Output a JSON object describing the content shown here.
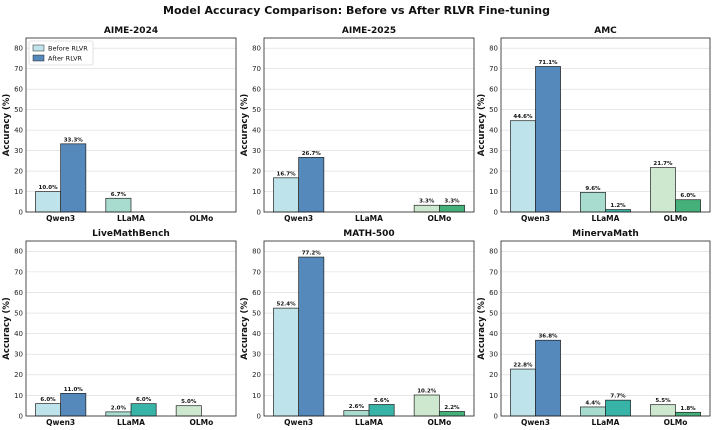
{
  "figure_title": "Model Accuracy Comparison: Before vs After RLVR Fine-tuning",
  "chart_data": [
    {
      "type": "bar",
      "title": "AIME-2024",
      "ylabel": "Accuracy (%)",
      "ylim": [
        0,
        85
      ],
      "yticks": [
        0,
        10,
        20,
        30,
        40,
        50,
        60,
        70,
        80
      ],
      "categories": [
        "Qwen3",
        "LLaMA",
        "OLMo"
      ],
      "series": [
        {
          "name": "Before RLVR",
          "values": [
            10.0,
            6.7,
            0.0
          ],
          "labels": [
            "10.0%",
            "6.7%",
            ""
          ]
        },
        {
          "name": "After RLVR",
          "values": [
            33.3,
            0.0,
            0.0
          ],
          "labels": [
            "33.3%",
            "",
            ""
          ]
        }
      ],
      "legend": {
        "position": "top-left",
        "entries": [
          "Before RLVR",
          "After RLVR"
        ]
      }
    },
    {
      "type": "bar",
      "title": "AIME-2025",
      "ylabel": "Accuracy (%)",
      "ylim": [
        0,
        85
      ],
      "yticks": [
        0,
        10,
        20,
        30,
        40,
        50,
        60,
        70,
        80
      ],
      "categories": [
        "Qwen3",
        "LLaMA",
        "OLMo"
      ],
      "series": [
        {
          "name": "Before RLVR",
          "values": [
            16.7,
            0.0,
            3.3
          ],
          "labels": [
            "16.7%",
            "",
            "3.3%"
          ]
        },
        {
          "name": "After RLVR",
          "values": [
            26.7,
            0.0,
            3.3
          ],
          "labels": [
            "26.7%",
            "",
            "3.3%"
          ]
        }
      ]
    },
    {
      "type": "bar",
      "title": "AMC",
      "ylabel": "Accuracy (%)",
      "ylim": [
        0,
        85
      ],
      "yticks": [
        0,
        10,
        20,
        30,
        40,
        50,
        60,
        70,
        80
      ],
      "categories": [
        "Qwen3",
        "LLaMA",
        "OLMo"
      ],
      "series": [
        {
          "name": "Before RLVR",
          "values": [
            44.6,
            9.6,
            21.7
          ],
          "labels": [
            "44.6%",
            "9.6%",
            "21.7%"
          ]
        },
        {
          "name": "After RLVR",
          "values": [
            71.1,
            1.2,
            6.0
          ],
          "labels": [
            "71.1%",
            "1.2%",
            "6.0%"
          ]
        }
      ]
    },
    {
      "type": "bar",
      "title": "LiveMathBench",
      "ylabel": "Accuracy (%)",
      "ylim": [
        0,
        85
      ],
      "yticks": [
        0,
        10,
        20,
        30,
        40,
        50,
        60,
        70,
        80
      ],
      "categories": [
        "Qwen3",
        "LLaMA",
        "OLMo"
      ],
      "series": [
        {
          "name": "Before RLVR",
          "values": [
            6.0,
            2.0,
            5.0
          ],
          "labels": [
            "6.0%",
            "2.0%",
            "5.0%"
          ]
        },
        {
          "name": "After RLVR",
          "values": [
            11.0,
            6.0,
            0.0
          ],
          "labels": [
            "11.0%",
            "6.0%",
            ""
          ]
        }
      ]
    },
    {
      "type": "bar",
      "title": "MATH-500",
      "ylabel": "Accuracy (%)",
      "ylim": [
        0,
        85
      ],
      "yticks": [
        0,
        10,
        20,
        30,
        40,
        50,
        60,
        70,
        80
      ],
      "categories": [
        "Qwen3",
        "LLaMA",
        "OLMo"
      ],
      "series": [
        {
          "name": "Before RLVR",
          "values": [
            52.4,
            2.6,
            10.2
          ],
          "labels": [
            "52.4%",
            "2.6%",
            "10.2%"
          ]
        },
        {
          "name": "After RLVR",
          "values": [
            77.2,
            5.6,
            2.2
          ],
          "labels": [
            "77.2%",
            "5.6%",
            "2.2%"
          ]
        }
      ]
    },
    {
      "type": "bar",
      "title": "MinervaMath",
      "ylabel": "Accuracy (%)",
      "ylim": [
        0,
        85
      ],
      "yticks": [
        0,
        10,
        20,
        30,
        40,
        50,
        60,
        70,
        80
      ],
      "categories": [
        "Qwen3",
        "LLaMA",
        "OLMo"
      ],
      "series": [
        {
          "name": "Before RLVR",
          "values": [
            22.8,
            4.4,
            5.5
          ],
          "labels": [
            "22.8%",
            "4.4%",
            "5.5%"
          ]
        },
        {
          "name": "After RLVR",
          "values": [
            36.8,
            7.7,
            1.8
          ],
          "labels": [
            "36.8%",
            "7.7%",
            "1.8%"
          ]
        }
      ]
    }
  ],
  "colors": {
    "before": [
      "#bfe3ea",
      "#a7dccf",
      "#cde8cf"
    ],
    "after": [
      "#5588bb",
      "#37b3a8",
      "#46b07a"
    ]
  }
}
